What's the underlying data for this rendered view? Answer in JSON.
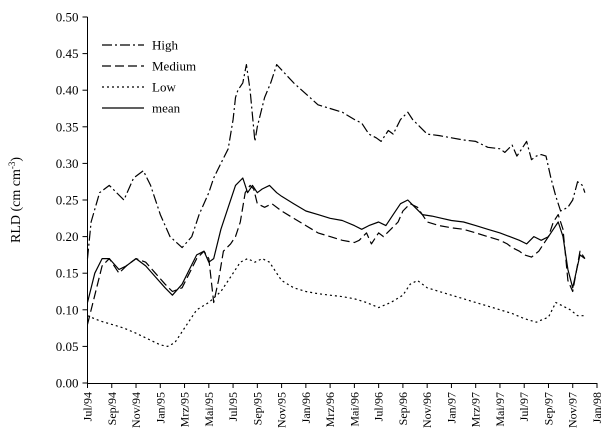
{
  "chart_data": {
    "type": "line",
    "title": "",
    "xlabel": "",
    "ylabel": "RLD (cm cm",
    "ylabel_sup": "-3",
    "ylabel_close": ")",
    "ylim": [
      0,
      0.5
    ],
    "yticks": [
      "0.00",
      "0.05",
      "0.10",
      "0.15",
      "0.20",
      "0.25",
      "0.30",
      "0.35",
      "0.40",
      "0.45",
      "0.50"
    ],
    "x_categories": [
      "Jul/94",
      "Sep/94",
      "Nov/94",
      "Jan/95",
      "Mrz/95",
      "Mai/95",
      "Jul/95",
      "Sep/95",
      "Nov/95",
      "Jan/96",
      "Mrz/96",
      "Mai/96",
      "Jul/96",
      "Sep/96",
      "Nov/96",
      "Jan/97",
      "Mrz/97",
      "Mai/97",
      "Jul/97",
      "Sep/97",
      "Nov/97",
      "Jan/98"
    ],
    "legend_position": "top-left",
    "grid": false,
    "series": [
      {
        "name": "High",
        "dash": "dash-dot",
        "x": [
          0,
          0.15,
          0.5,
          0.9,
          1.5,
          1.9,
          2.3,
          2.6,
          3.0,
          3.4,
          3.9,
          4.3,
          4.6,
          5.0,
          5.2,
          5.5,
          5.8,
          6.0,
          6.1,
          6.2,
          6.4,
          6.55,
          6.7,
          6.9,
          7.0,
          7.3,
          7.55,
          7.8,
          8.5,
          9.5,
          10.5,
          11.0,
          11.3,
          11.6,
          11.9,
          12.1,
          12.4,
          12.6,
          12.9,
          13.2,
          13.4,
          13.7,
          14.0,
          14.5,
          15.0,
          15.5,
          16.0,
          16.5,
          17.0,
          17.2,
          17.5,
          17.7,
          17.9,
          18.1,
          18.3,
          18.5,
          18.7,
          18.9,
          19.1,
          19.3,
          19.5,
          19.8,
          20.0,
          20.2,
          20.4,
          20.5
        ],
        "y": [
          0.17,
          0.22,
          0.26,
          0.27,
          0.25,
          0.28,
          0.29,
          0.27,
          0.23,
          0.2,
          0.185,
          0.2,
          0.23,
          0.26,
          0.28,
          0.3,
          0.32,
          0.36,
          0.39,
          0.4,
          0.41,
          0.435,
          0.4,
          0.33,
          0.35,
          0.39,
          0.41,
          0.435,
          0.41,
          0.38,
          0.37,
          0.36,
          0.355,
          0.34,
          0.335,
          0.33,
          0.345,
          0.34,
          0.36,
          0.37,
          0.36,
          0.35,
          0.34,
          0.338,
          0.335,
          0.332,
          0.33,
          0.322,
          0.32,
          0.315,
          0.325,
          0.31,
          0.32,
          0.33,
          0.305,
          0.31,
          0.312,
          0.31,
          0.28,
          0.255,
          0.235,
          0.24,
          0.25,
          0.275,
          0.27,
          0.26
        ]
      },
      {
        "name": "Medium",
        "dash": "dashed",
        "x": [
          0,
          0.3,
          0.6,
          0.9,
          1.3,
          1.6,
          2.0,
          2.4,
          2.8,
          3.2,
          3.5,
          3.9,
          4.2,
          4.5,
          4.8,
          5.0,
          5.2,
          5.4,
          5.6,
          5.9,
          6.1,
          6.3,
          6.5,
          6.7,
          6.85,
          7.0,
          7.3,
          7.6,
          8.0,
          8.5,
          9.0,
          9.5,
          10.0,
          10.5,
          11.0,
          11.2,
          11.5,
          11.7,
          12.0,
          12.2,
          12.5,
          12.8,
          13.0,
          13.3,
          13.6,
          14.0,
          14.5,
          15.0,
          15.5,
          16.0,
          16.5,
          17.0,
          17.3,
          17.5,
          17.8,
          18.0,
          18.3,
          18.6,
          18.8,
          19.0,
          19.2,
          19.4,
          19.6,
          19.8,
          20.0,
          20.3,
          20.5
        ],
        "y": [
          0.08,
          0.12,
          0.16,
          0.17,
          0.15,
          0.16,
          0.17,
          0.165,
          0.15,
          0.135,
          0.125,
          0.13,
          0.15,
          0.17,
          0.18,
          0.17,
          0.11,
          0.14,
          0.18,
          0.19,
          0.2,
          0.22,
          0.26,
          0.27,
          0.265,
          0.245,
          0.24,
          0.245,
          0.235,
          0.225,
          0.215,
          0.205,
          0.2,
          0.195,
          0.192,
          0.195,
          0.205,
          0.19,
          0.205,
          0.2,
          0.21,
          0.22,
          0.235,
          0.245,
          0.24,
          0.22,
          0.215,
          0.212,
          0.21,
          0.205,
          0.2,
          0.195,
          0.19,
          0.185,
          0.18,
          0.175,
          0.172,
          0.18,
          0.19,
          0.2,
          0.22,
          0.23,
          0.21,
          0.14,
          0.125,
          0.18,
          0.17
        ]
      },
      {
        "name": "Low",
        "dash": "dotted",
        "x": [
          0,
          0.5,
          1.0,
          1.5,
          2.0,
          2.5,
          3.0,
          3.3,
          3.6,
          4.0,
          4.5,
          5.0,
          5.5,
          6.0,
          6.3,
          6.6,
          6.9,
          7.2,
          7.5,
          7.8,
          8.0,
          8.5,
          9.0,
          9.5,
          10.0,
          10.5,
          11.0,
          11.5,
          12.0,
          12.5,
          13.0,
          13.3,
          13.6,
          14.0,
          14.5,
          15.0,
          15.5,
          16.0,
          16.5,
          17.0,
          17.5,
          18.0,
          18.5,
          19.0,
          19.3,
          19.6,
          19.9,
          20.2,
          20.5
        ],
        "y": [
          0.092,
          0.085,
          0.08,
          0.075,
          0.068,
          0.06,
          0.052,
          0.05,
          0.055,
          0.075,
          0.1,
          0.11,
          0.125,
          0.15,
          0.165,
          0.17,
          0.165,
          0.17,
          0.165,
          0.15,
          0.14,
          0.13,
          0.125,
          0.122,
          0.12,
          0.118,
          0.115,
          0.11,
          0.103,
          0.11,
          0.12,
          0.135,
          0.14,
          0.13,
          0.125,
          0.12,
          0.115,
          0.11,
          0.105,
          0.1,
          0.095,
          0.088,
          0.083,
          0.09,
          0.11,
          0.105,
          0.1,
          0.092,
          0.092
        ]
      },
      {
        "name": "mean",
        "dash": "solid",
        "x": [
          0,
          0.3,
          0.6,
          0.9,
          1.3,
          1.6,
          2.0,
          2.4,
          2.8,
          3.2,
          3.5,
          3.9,
          4.2,
          4.5,
          4.8,
          5.0,
          5.2,
          5.5,
          5.8,
          6.1,
          6.4,
          6.6,
          6.8,
          7.0,
          7.2,
          7.5,
          7.8,
          8.0,
          8.5,
          9.0,
          9.5,
          10.0,
          10.5,
          11.0,
          11.3,
          11.6,
          12.0,
          12.3,
          12.6,
          12.9,
          13.2,
          13.5,
          13.8,
          14.2,
          14.6,
          15.0,
          15.5,
          16.0,
          16.5,
          17.0,
          17.4,
          17.8,
          18.1,
          18.4,
          18.7,
          19.0,
          19.2,
          19.4,
          19.6,
          19.8,
          20.0,
          20.3,
          20.5
        ],
        "y": [
          0.11,
          0.15,
          0.17,
          0.17,
          0.155,
          0.16,
          0.17,
          0.16,
          0.145,
          0.13,
          0.12,
          0.135,
          0.155,
          0.175,
          0.18,
          0.165,
          0.17,
          0.21,
          0.24,
          0.27,
          0.28,
          0.26,
          0.27,
          0.26,
          0.265,
          0.27,
          0.26,
          0.255,
          0.245,
          0.235,
          0.23,
          0.225,
          0.222,
          0.215,
          0.21,
          0.215,
          0.22,
          0.215,
          0.23,
          0.245,
          0.25,
          0.24,
          0.23,
          0.228,
          0.225,
          0.222,
          0.22,
          0.215,
          0.21,
          0.205,
          0.2,
          0.195,
          0.19,
          0.2,
          0.195,
          0.2,
          0.21,
          0.22,
          0.2,
          0.155,
          0.13,
          0.175,
          0.17
        ]
      }
    ]
  }
}
